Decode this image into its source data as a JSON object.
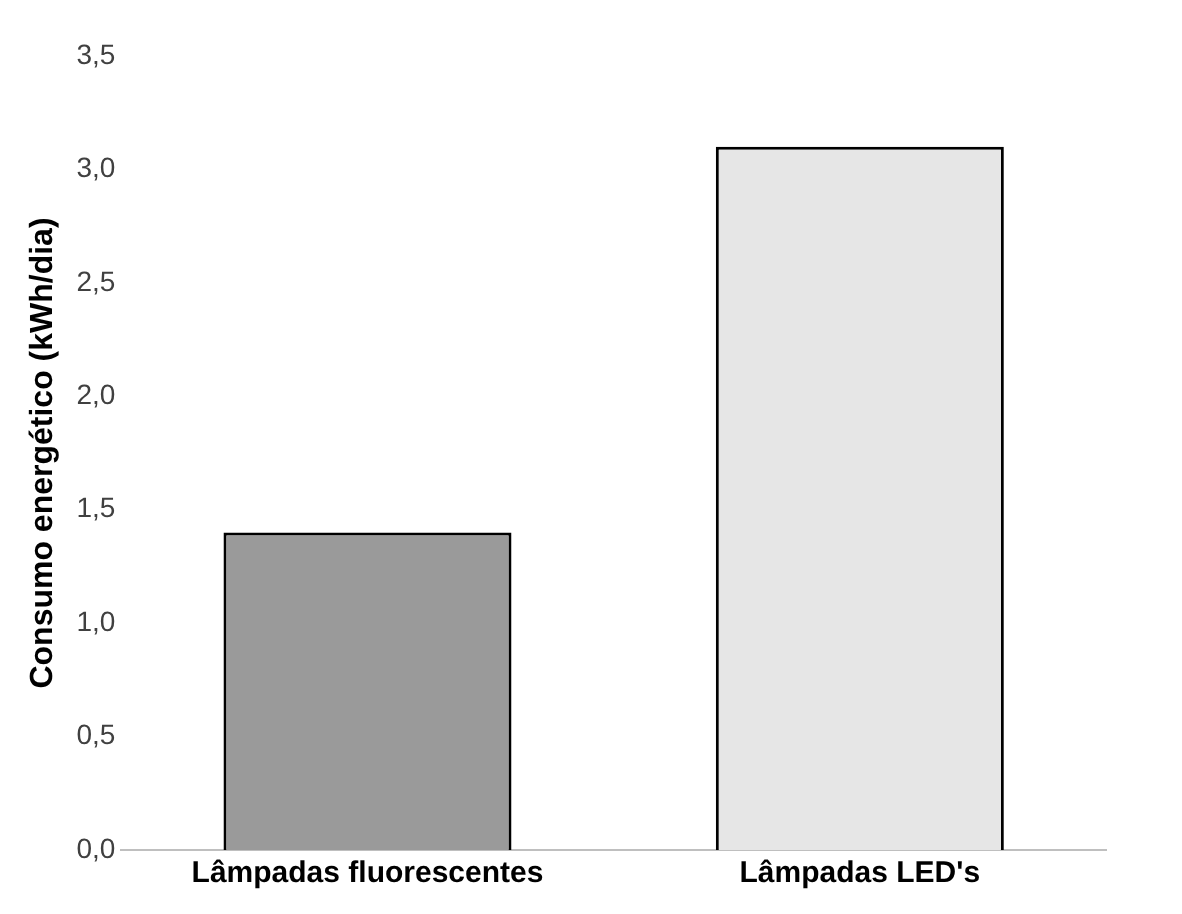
{
  "chart_data": {
    "type": "bar",
    "ylabel": "Consumo energético (kWh/dia)",
    "categories": [
      "Lâmpadas fluorescentes",
      "Lâmpadas LED's"
    ],
    "values": [
      1.4,
      3.1
    ],
    "colors": [
      "#9a9a9a",
      "#e6e6e6"
    ],
    "ylim": [
      0,
      3.5
    ],
    "yticks": [
      {
        "value": 0,
        "label": "0,0"
      },
      {
        "value": 0.5,
        "label": "0,5"
      },
      {
        "value": 1,
        "label": "1,0"
      },
      {
        "value": 1.5,
        "label": "1,5"
      },
      {
        "value": 2,
        "label": "2,0"
      },
      {
        "value": 2.5,
        "label": "2,5"
      },
      {
        "value": 3,
        "label": "3,0"
      },
      {
        "value": 3.5,
        "label": "3,5"
      }
    ],
    "grid": false,
    "legend": false
  }
}
